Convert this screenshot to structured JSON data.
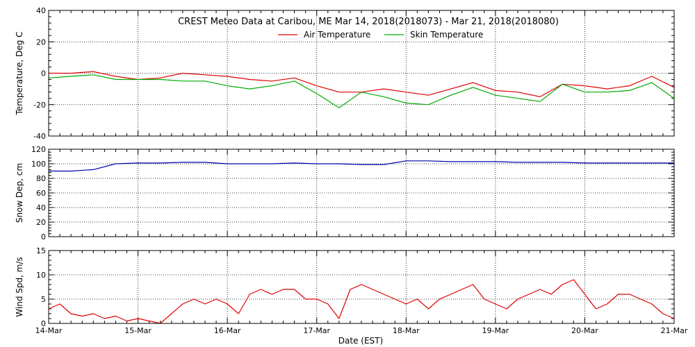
{
  "chart_data": [
    {
      "type": "line",
      "title": "CREST Meteo Data at Caribou, ME   Mar 14, 2018(2018073) - Mar 21, 2018(2018080)",
      "ylabel": "Temperature, Deg C",
      "ylim": [
        -40,
        40
      ],
      "yticks": [
        "40",
        "20",
        "0",
        "-20",
        "-40"
      ],
      "x": [
        14.0,
        14.25,
        14.5,
        14.75,
        15.0,
        15.25,
        15.5,
        15.75,
        16.0,
        16.25,
        16.5,
        16.75,
        17.0,
        17.25,
        17.5,
        17.75,
        18.0,
        18.25,
        18.5,
        18.75,
        19.0,
        19.25,
        19.5,
        19.75,
        20.0,
        20.25,
        20.5,
        20.75,
        21.0
      ],
      "series": [
        {
          "name": "Air Temperature",
          "color": "#dd0000",
          "values": [
            0,
            0,
            1,
            -2,
            -4,
            -3,
            0,
            -1,
            -2,
            -4,
            -5,
            -3,
            -8,
            -12,
            -12,
            -10,
            -12,
            -14,
            -10,
            -6,
            -11,
            -12,
            -15,
            -7,
            -8,
            -10,
            -8,
            -2,
            -9
          ]
        },
        {
          "name": "Skin Temperature",
          "color": "#00aa00",
          "values": [
            -3,
            -2,
            -1,
            -4,
            -4,
            -4,
            -5,
            -5,
            -8,
            -10,
            -8,
            -5,
            -13,
            -22,
            -12,
            -15,
            -19,
            -20,
            -14,
            -9,
            -14,
            -16,
            -18,
            -7,
            -12,
            -12,
            -11,
            -6,
            -16
          ]
        }
      ]
    },
    {
      "type": "line",
      "ylabel": "Snow Dep, cm",
      "ylim": [
        0,
        120
      ],
      "yticks": [
        "120",
        "100",
        "80",
        "60",
        "40",
        "20",
        "0"
      ],
      "x": [
        14.0,
        14.25,
        14.5,
        14.75,
        15.0,
        15.25,
        15.5,
        15.75,
        16.0,
        16.25,
        16.5,
        16.75,
        17.0,
        17.25,
        17.5,
        17.75,
        18.0,
        18.25,
        18.5,
        18.75,
        19.0,
        19.25,
        19.5,
        19.75,
        20.0,
        20.25,
        20.5,
        20.75,
        21.0
      ],
      "series": [
        {
          "color": "#0000aa",
          "values": [
            90,
            90,
            92,
            100,
            101,
            101,
            102,
            102,
            100,
            100,
            100,
            101,
            100,
            100,
            99,
            99,
            104,
            104,
            103,
            103,
            103,
            102,
            102,
            102,
            101,
            101,
            101,
            101,
            101
          ]
        }
      ]
    },
    {
      "type": "line",
      "ylabel": "Wind Spd, m/s",
      "xlabel": "Date (EST)",
      "ylim": [
        0,
        15
      ],
      "yticks": [
        "15",
        "10",
        "5",
        "0"
      ],
      "xticks": [
        "14-Mar",
        "15-Mar",
        "16-Mar",
        "17-Mar",
        "18-Mar",
        "19-Mar",
        "20-Mar",
        "21-Mar"
      ],
      "x": [
        14.0,
        14.125,
        14.25,
        14.375,
        14.5,
        14.625,
        14.75,
        14.875,
        15.0,
        15.125,
        15.25,
        15.375,
        15.5,
        15.625,
        15.75,
        15.875,
        16.0,
        16.125,
        16.25,
        16.375,
        16.5,
        16.625,
        16.75,
        16.875,
        17.0,
        17.125,
        17.25,
        17.375,
        17.5,
        17.625,
        17.75,
        17.875,
        18.0,
        18.125,
        18.25,
        18.375,
        18.5,
        18.625,
        18.75,
        18.875,
        19.0,
        19.125,
        19.25,
        19.375,
        19.5,
        19.625,
        19.75,
        19.875,
        20.0,
        20.125,
        20.25,
        20.375,
        20.5,
        20.625,
        20.75,
        20.875,
        21.0
      ],
      "series": [
        {
          "color": "#dd0000",
          "values": [
            3,
            4,
            2,
            1.5,
            2,
            1,
            1.5,
            0.5,
            1,
            0.5,
            0,
            2,
            4,
            5,
            4,
            5,
            4,
            2,
            6,
            7,
            6,
            7,
            7,
            5,
            5,
            4,
            1,
            7,
            8,
            7,
            6,
            5,
            4,
            5,
            3,
            5,
            6,
            7,
            8,
            5,
            4,
            3,
            5,
            6,
            7,
            6,
            8,
            9,
            6,
            3,
            4,
            6,
            6,
            5,
            4,
            2,
            1
          ]
        }
      ]
    }
  ]
}
